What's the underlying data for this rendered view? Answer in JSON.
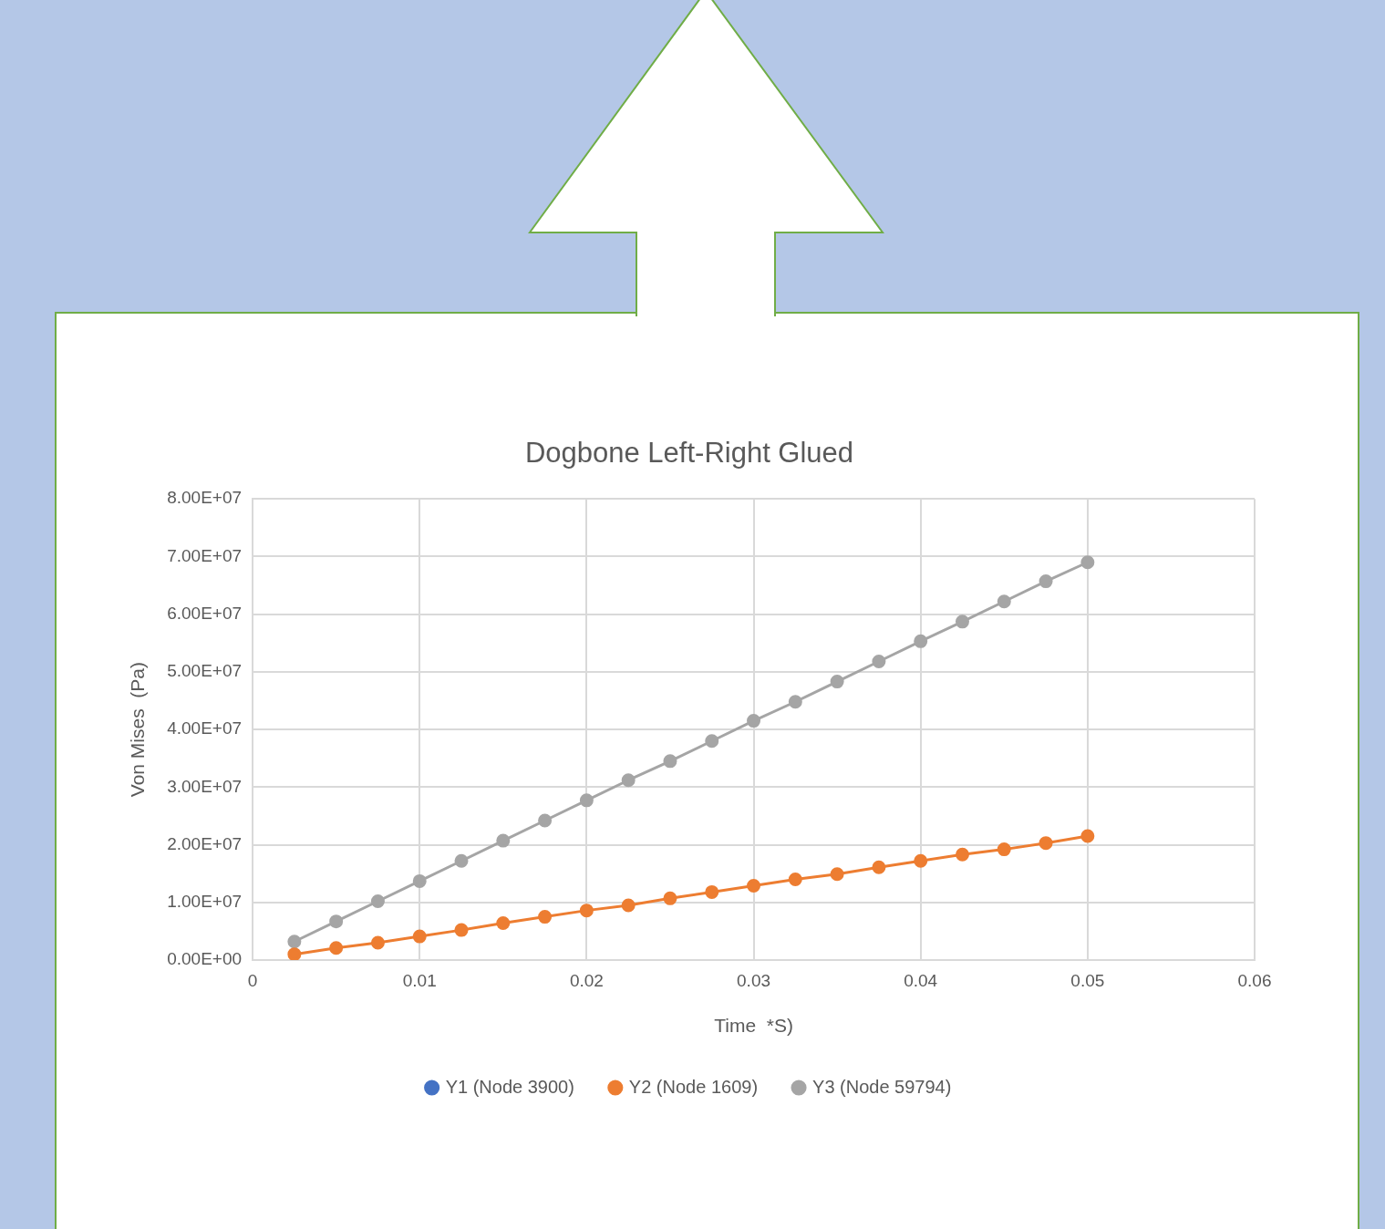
{
  "chart_data": {
    "type": "line",
    "title": "Dogbone Left-Right Glued",
    "xlabel": "Time  *S)",
    "ylabel": "Von Mises  (Pa)",
    "x": [
      0.0025,
      0.005,
      0.0075,
      0.01,
      0.0125,
      0.015,
      0.0175,
      0.02,
      0.0225,
      0.025,
      0.0275,
      0.03,
      0.0325,
      0.035,
      0.0375,
      0.04,
      0.0425,
      0.045,
      0.0475,
      0.05
    ],
    "series": [
      {
        "name": "Y1 (Node 3900)",
        "color": "#4472c4",
        "values": [
          null,
          null,
          null,
          null,
          null,
          null,
          null,
          null,
          null,
          null,
          null,
          null,
          null,
          null,
          null,
          null,
          null,
          null,
          null,
          null
        ]
      },
      {
        "name": "Y2 (Node 1609)",
        "color": "#ed7d31",
        "values": [
          1000000,
          2100000,
          3000000,
          4100000,
          5200000,
          6400000,
          7500000,
          8600000,
          9500000,
          10700000,
          11800000,
          12900000,
          14000000,
          14900000,
          16100000,
          17200000,
          18300000,
          19200000,
          20300000,
          21500000
        ]
      },
      {
        "name": "Y3 (Node 59794)",
        "color": "#a5a5a5",
        "values": [
          3200000,
          6700000,
          10200000,
          13700000,
          17200000,
          20700000,
          24200000,
          27700000,
          31200000,
          34500000,
          38000000,
          41500000,
          44800000,
          48300000,
          51800000,
          55300000,
          58700000,
          62200000,
          65700000,
          69000000
        ]
      }
    ],
    "xlim": [
      0,
      0.06
    ],
    "xticks": [
      0,
      0.01,
      0.02,
      0.03,
      0.04,
      0.05,
      0.06
    ],
    "ylim": [
      0,
      80000000
    ],
    "yticks": [
      {
        "value": 0,
        "label": "0.00E+00"
      },
      {
        "value": 10000000,
        "label": "1.00E+07"
      },
      {
        "value": 20000000,
        "label": "2.00E+07"
      },
      {
        "value": 30000000,
        "label": "3.00E+07"
      },
      {
        "value": 40000000,
        "label": "4.00E+07"
      },
      {
        "value": 50000000,
        "label": "5.00E+07"
      },
      {
        "value": 60000000,
        "label": "6.00E+07"
      },
      {
        "value": 70000000,
        "label": "7.00E+07"
      },
      {
        "value": 80000000,
        "label": "8.00E+07"
      }
    ],
    "grid": true,
    "legend": "bottom",
    "marker": "circle",
    "line_style": "solid"
  }
}
